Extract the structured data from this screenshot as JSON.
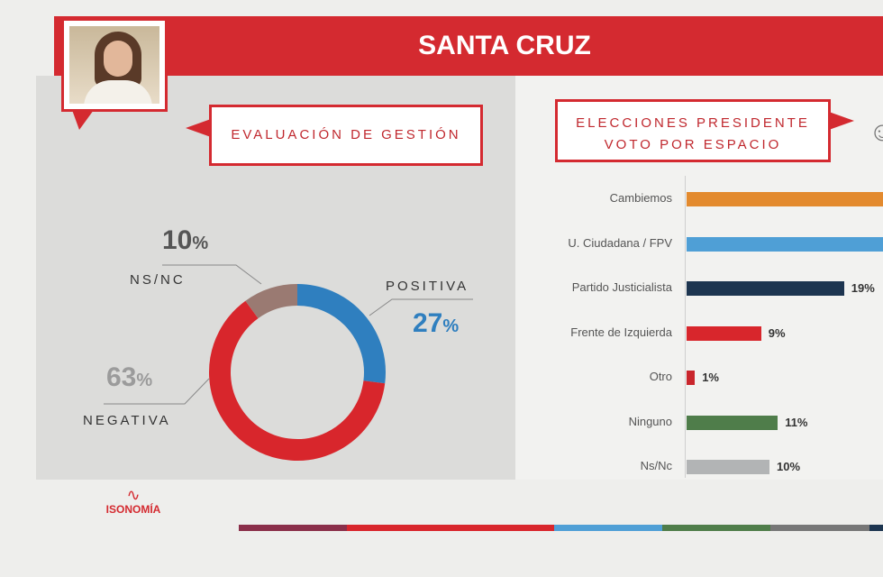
{
  "header": {
    "title": "SANTA CRUZ"
  },
  "left_panel": {
    "heading": "EVALUACIÓN DE GESTIÓN"
  },
  "right_panel": {
    "heading_line1": "ELECCIONES PRESIDENTE",
    "heading_line2": "VOTO POR ESPACIO"
  },
  "footer": {
    "logo_text": "ISONOMÍA"
  },
  "colors": {
    "brand_red": "#d42a30",
    "positive": "#2f7fbf",
    "negative": "#d8262c",
    "nsnc": "#9a7a72"
  },
  "chart_data": [
    {
      "type": "pie",
      "title": "EVALUACIÓN DE GESTIÓN",
      "donut": true,
      "slices": [
        {
          "label": "POSITIVA",
          "value": 27,
          "display": "27",
          "color": "#2f7fbf"
        },
        {
          "label": "NEGATIVA",
          "value": 63,
          "display": "63",
          "color": "#d8262c"
        },
        {
          "label": "NS/NC",
          "value": 10,
          "display": "10",
          "color": "#9a7a72"
        }
      ],
      "unit": "%"
    },
    {
      "type": "bar",
      "orientation": "horizontal",
      "title": "ELECCIONES PRESIDENTE VOTO POR ESPACIO",
      "categories": [
        "Cambiemos",
        "U. Ciudadana / FPV",
        "Partido Justicialista",
        "Frente de Izquierda",
        "Otro",
        "Ninguno",
        "Ns/Nc"
      ],
      "values": [
        null,
        null,
        19,
        9,
        1,
        11,
        10
      ],
      "value_labels": [
        "",
        "",
        "19%",
        "9%",
        "1%",
        "11%",
        "10%"
      ],
      "colors": [
        "#e38a2e",
        "#4f9fd6",
        "#1d3550",
        "#d8262c",
        "#c9262c",
        "#4f7d4a",
        "#b2b4b5"
      ],
      "note": "first two bars are cut off by the image edge"
    }
  ]
}
